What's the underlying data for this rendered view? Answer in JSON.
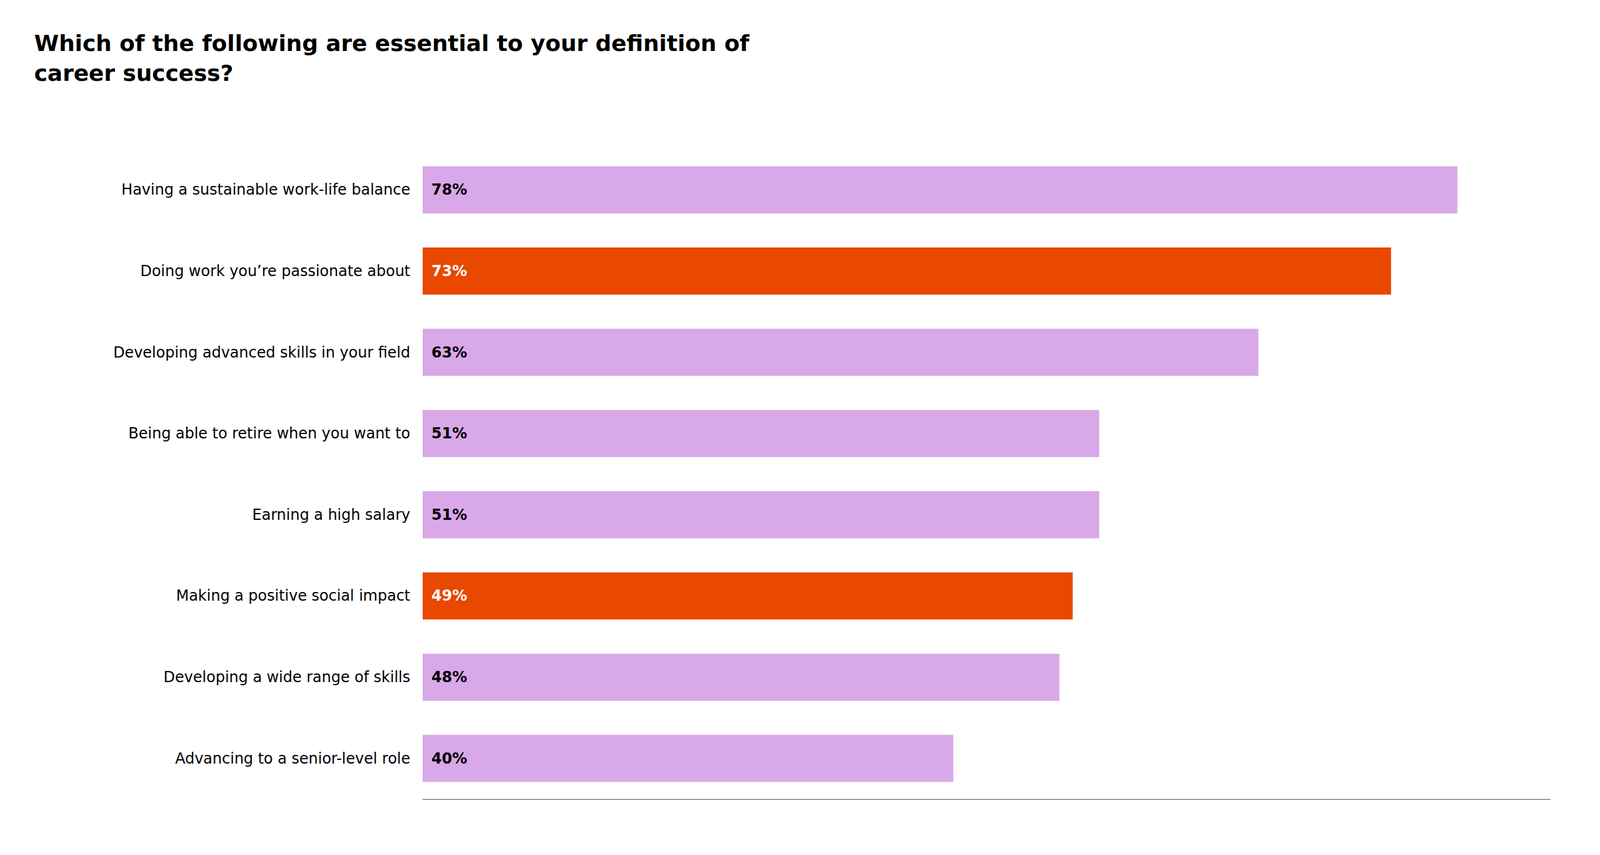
{
  "chart_data": {
    "type": "bar",
    "orientation": "horizontal",
    "title": "Which of the following are essential to your definition of\ncareer success?",
    "categories": [
      "Advancing to a senior-level role",
      "Developing a wide range of skills",
      "Making a positive social impact",
      "Earning a high salary",
      "Being able to retire when you want to",
      "Developing advanced skills in your field",
      "Doing work you’re passionate about",
      "Having a sustainable work-life balance"
    ],
    "values": [
      40,
      48,
      49,
      51,
      51,
      63,
      73,
      78
    ],
    "value_labels": [
      "40%",
      "48%",
      "49%",
      "51%",
      "51%",
      "63%",
      "73%",
      "78%"
    ],
    "colors": [
      "#d9a8e8",
      "#d9a8e8",
      "#e84800",
      "#d9a8e8",
      "#d9a8e8",
      "#d9a8e8",
      "#e84800",
      "#d9a8e8"
    ],
    "xlim": [
      0,
      85
    ],
    "grid": false,
    "data_labels": true,
    "tick_labels": "y"
  }
}
